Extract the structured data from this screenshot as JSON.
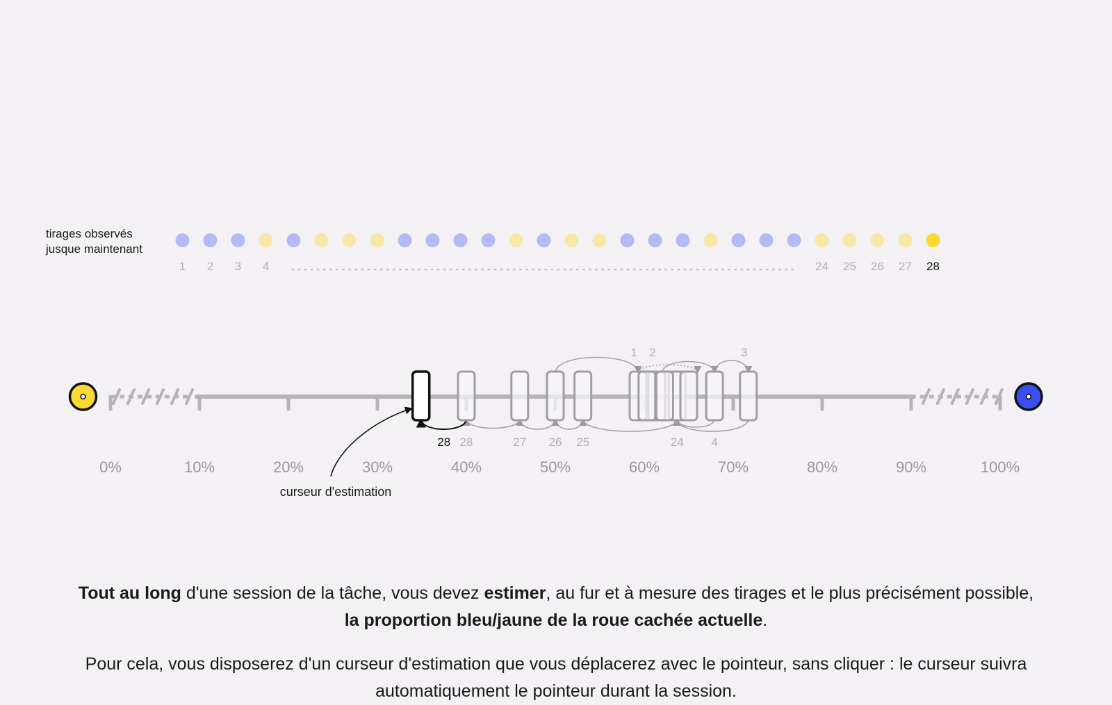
{
  "draws": {
    "label_line1": "tirages observés",
    "label_line2": "jusque maintenant",
    "sequence": [
      "blue",
      "blue",
      "blue",
      "yellow",
      "blue",
      "yellow",
      "yellow",
      "yellow",
      "blue",
      "blue",
      "blue",
      "blue",
      "yellow",
      "blue",
      "yellow",
      "yellow",
      "blue",
      "blue",
      "blue",
      "yellow",
      "blue",
      "blue",
      "blue",
      "yellow",
      "yellow",
      "yellow",
      "yellow",
      "yellow"
    ],
    "numbered_labels": [
      {
        "n": 1,
        "text": "1"
      },
      {
        "n": 2,
        "text": "2"
      },
      {
        "n": 3,
        "text": "3"
      },
      {
        "n": 4,
        "text": "4"
      },
      {
        "n": 24,
        "text": "24"
      },
      {
        "n": 25,
        "text": "25"
      },
      {
        "n": 26,
        "text": "26"
      },
      {
        "n": 27,
        "text": "27"
      },
      {
        "n": 28,
        "text": "28"
      }
    ],
    "current_draw": 28
  },
  "scale": {
    "left_icon": "yellow-wheel-icon",
    "right_icon": "blue-wheel-icon",
    "ticks": [
      "0%",
      "10%",
      "20%",
      "30%",
      "40%",
      "50%",
      "60%",
      "70%",
      "80%",
      "90%",
      "100%"
    ],
    "tick_values": [
      0,
      10,
      20,
      30,
      40,
      50,
      60,
      70,
      80,
      90,
      100
    ]
  },
  "estimation": {
    "cursor_label": "curseur d'estimation",
    "current": {
      "draw": "28",
      "value_pct": 34.9
    },
    "history": [
      {
        "draw": "1",
        "value_pct": 59.3
      },
      {
        "draw": "2",
        "value_pct": 61.4
      },
      {
        "draw": "3",
        "value_pct": 71.7
      },
      {
        "draw": "4",
        "value_pct": 67.9
      },
      {
        "draw": "24",
        "value_pct": 63.7
      },
      {
        "draw": "25",
        "value_pct": 53.1
      },
      {
        "draw": "26",
        "value_pct": 50.0
      },
      {
        "draw": "27",
        "value_pct": 46.0
      },
      {
        "draw": "28",
        "value_pct": 40.0
      }
    ],
    "extra_past_values_pct": [
      60.3,
      62.3,
      65.0
    ]
  },
  "colors": {
    "background": "#f3f1f4",
    "blue": "#3b4ff0",
    "yellow": "#fbd934",
    "blue_light": "#b4baf3",
    "yellow_light": "#f7e8a8",
    "gray": "#b5b3b6"
  },
  "instructions": {
    "p1_a": "Tout au long",
    "p1_b": " d'une session de la tâche, vous devez ",
    "p1_c": "estimer",
    "p1_d": ", au fur et à mesure des tirages et le plus précisément possible, ",
    "p1_e": "la proportion bleu/jaune de la roue cachée actuelle",
    "p1_f": ".",
    "p2": "Pour cela, vous disposerez d'un curseur d'estimation que vous déplacerez avec le pointeur, sans cliquer : le curseur suivra automatiquement le pointeur durant la session."
  }
}
